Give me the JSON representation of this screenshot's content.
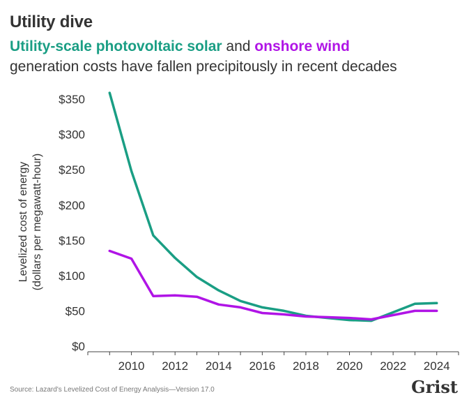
{
  "header": {
    "title": "Utility dive",
    "subtitle_solar": "Utility-scale photovoltaic solar",
    "subtitle_and": " and ",
    "subtitle_wind": "onshore wind",
    "subtitle_rest": "generation costs have fallen precipitously in recent decades"
  },
  "colors": {
    "solar": "#1a9e84",
    "wind": "#b014e6",
    "axis": "#444444",
    "text": "#333333"
  },
  "footer": {
    "source": "Source: Lazard's Levelized Cost of Energy Analysis—Version 17.0",
    "brand": "Grist"
  },
  "chart_data": {
    "type": "line",
    "title": "",
    "ylabel_line1": "Levelized cost of energy",
    "ylabel_line2": "(dollars per megawatt-hour)",
    "xlabel": "",
    "xlim": [
      2008,
      2025
    ],
    "ylim": [
      0,
      360
    ],
    "x_ticks": [
      2010,
      2012,
      2014,
      2016,
      2018,
      2020,
      2022,
      2024
    ],
    "y_ticks": [
      0,
      50,
      100,
      150,
      200,
      250,
      300,
      350
    ],
    "y_tick_labels": [
      "$0",
      "$50",
      "$100",
      "$150",
      "$200",
      "$250",
      "$300",
      "$350"
    ],
    "grid": false,
    "legend": "none",
    "x": [
      2009,
      2010,
      2011,
      2012,
      2013,
      2014,
      2015,
      2016,
      2017,
      2018,
      2019,
      2020,
      2021,
      2022,
      2023,
      2024
    ],
    "series": [
      {
        "key": "solar",
        "values": [
          359,
          248,
          157,
          125,
          98,
          79,
          64,
          55,
          50,
          43,
          40,
          37,
          36,
          48,
          60,
          61
        ]
      },
      {
        "key": "wind",
        "values": [
          135,
          124,
          71,
          72,
          70,
          59,
          55,
          47,
          45,
          42,
          41,
          40,
          38,
          44,
          50,
          50
        ]
      }
    ]
  }
}
